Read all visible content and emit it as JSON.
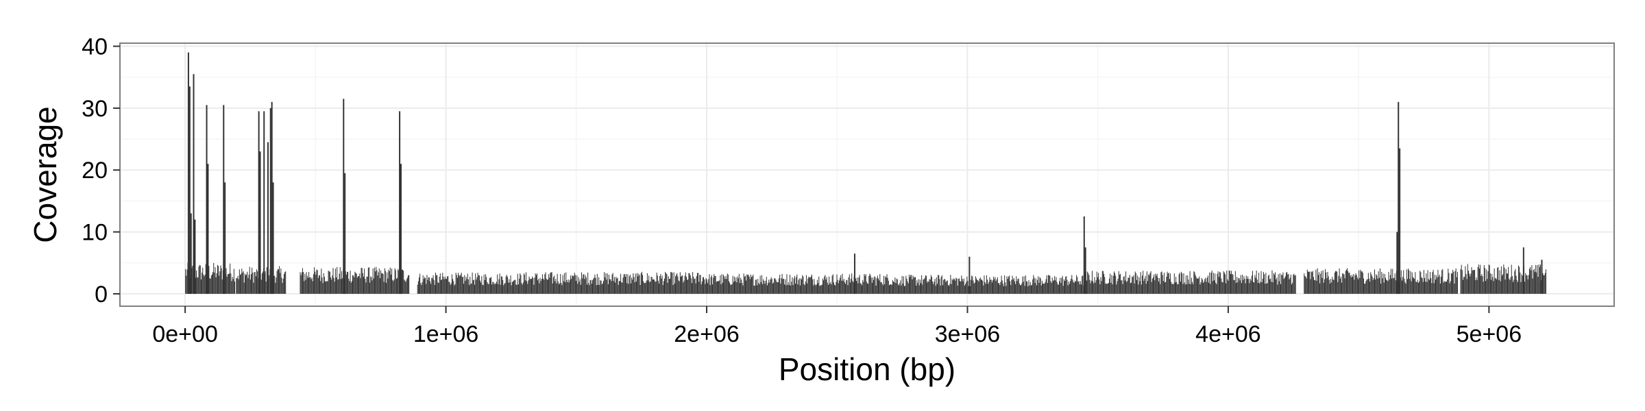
{
  "chart_data": {
    "type": "bar",
    "title": "",
    "xlabel": "Position (bp)",
    "ylabel": "Coverage",
    "xlim": [
      -250000,
      5480000
    ],
    "ylim": [
      -2,
      40.5
    ],
    "x_ticks": [
      0,
      1000000,
      2000000,
      3000000,
      4000000,
      5000000
    ],
    "x_tick_labels": [
      "0e+00",
      "1e+06",
      "2e+06",
      "3e+06",
      "4e+06",
      "5e+06"
    ],
    "x_minor_ticks": [
      500000,
      1500000,
      2500000,
      3500000,
      4500000
    ],
    "y_ticks": [
      0,
      10,
      20,
      30,
      40
    ],
    "y_tick_labels": [
      "0",
      "10",
      "20",
      "30",
      "40"
    ],
    "y_minor_ticks": [
      5,
      15,
      25,
      35
    ],
    "grid": true,
    "legend": "none",
    "colors": {
      "bar": "#333333",
      "panel_background": "#ffffff",
      "grid_major": "#ebebeb",
      "grid_minor": "#f5f5f5",
      "panel_border": "#7f7f7f"
    },
    "baseline_segments": [
      {
        "start": 0,
        "end": 190000,
        "level": 4.4
      },
      {
        "start": 195000,
        "end": 385000,
        "level": 3.9
      },
      {
        "start": 440000,
        "end": 860000,
        "level": 3.8
      },
      {
        "start": 890000,
        "end": 1300000,
        "level": 3.0
      },
      {
        "start": 1300000,
        "end": 2000000,
        "level": 3.1
      },
      {
        "start": 2000000,
        "end": 2700000,
        "level": 2.9
      },
      {
        "start": 2700000,
        "end": 3450000,
        "level": 2.7
      },
      {
        "start": 3450000,
        "end": 4260000,
        "level": 3.3
      },
      {
        "start": 4290000,
        "end": 4880000,
        "level": 3.6
      },
      {
        "start": 4890000,
        "end": 5220000,
        "level": 4.2
      }
    ],
    "peaks": [
      {
        "x": 10000,
        "y": 39
      },
      {
        "x": 15000,
        "y": 33.5
      },
      {
        "x": 20000,
        "y": 13
      },
      {
        "x": 30000,
        "y": 35.5
      },
      {
        "x": 35000,
        "y": 12
      },
      {
        "x": 80000,
        "y": 30.5
      },
      {
        "x": 85000,
        "y": 21
      },
      {
        "x": 145000,
        "y": 30.5
      },
      {
        "x": 150000,
        "y": 18
      },
      {
        "x": 280000,
        "y": 29.5
      },
      {
        "x": 285000,
        "y": 23
      },
      {
        "x": 300000,
        "y": 29.5
      },
      {
        "x": 315000,
        "y": 24.5
      },
      {
        "x": 325000,
        "y": 30
      },
      {
        "x": 330000,
        "y": 31
      },
      {
        "x": 335000,
        "y": 18
      },
      {
        "x": 605000,
        "y": 31.5
      },
      {
        "x": 610000,
        "y": 19.5
      },
      {
        "x": 820000,
        "y": 29.5
      },
      {
        "x": 825000,
        "y": 21
      },
      {
        "x": 2565000,
        "y": 6.5
      },
      {
        "x": 3005000,
        "y": 6
      },
      {
        "x": 3445000,
        "y": 12.5
      },
      {
        "x": 3450000,
        "y": 7.5
      },
      {
        "x": 4650000,
        "y": 31
      },
      {
        "x": 4655000,
        "y": 23.5
      },
      {
        "x": 4645000,
        "y": 10
      },
      {
        "x": 5130000,
        "y": 7.5
      },
      {
        "x": 5200000,
        "y": 5.5
      }
    ]
  }
}
